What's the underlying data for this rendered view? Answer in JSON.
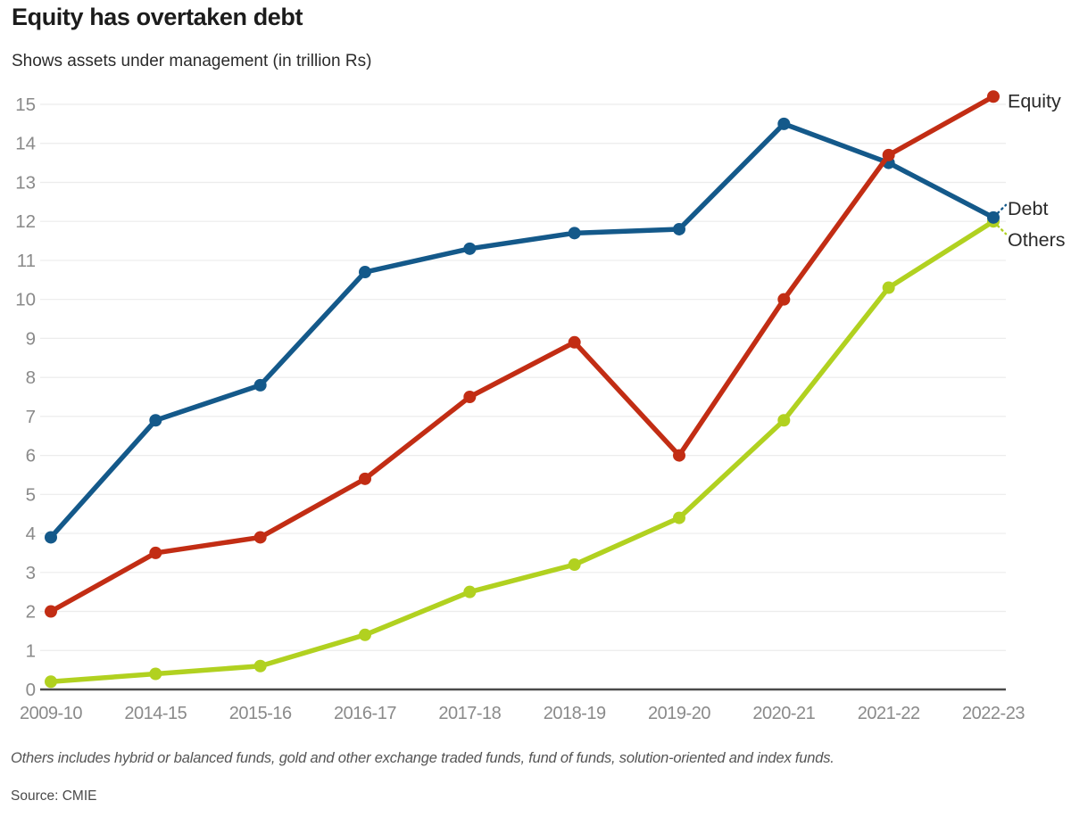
{
  "header": {
    "title": "Equity has overtaken debt",
    "subtitle": "Shows assets under management (in trillion Rs)"
  },
  "chart_data": {
    "type": "line",
    "title": "Equity has overtaken debt",
    "subtitle": "Shows assets under management (in trillion Rs)",
    "xlabel": "",
    "ylabel": "in trillion Rs",
    "categories": [
      "2009-10",
      "2014-15",
      "2015-16",
      "2016-17",
      "2017-18",
      "2018-19",
      "2019-20",
      "2020-21",
      "2021-22",
      "2022-23"
    ],
    "series": [
      {
        "name": "Equity",
        "color": "#c22d14",
        "z": 2,
        "label_dy": 5,
        "leader": false,
        "values": [
          2.0,
          3.5,
          3.9,
          5.4,
          7.5,
          8.9,
          6.0,
          10.0,
          13.7,
          15.2
        ]
      },
      {
        "name": "Debt",
        "color": "#14598a",
        "z": 1,
        "label_dy": -10,
        "leader": true,
        "leader_dir": -1,
        "values": [
          3.9,
          6.9,
          7.8,
          10.7,
          11.3,
          11.7,
          11.8,
          14.5,
          13.5,
          12.1
        ]
      },
      {
        "name": "Others",
        "color": "#b1d120",
        "z": 0,
        "label_dy": 21,
        "leader": true,
        "leader_dir": 1,
        "values": [
          0.2,
          0.4,
          0.6,
          1.4,
          2.5,
          3.2,
          4.4,
          6.9,
          10.3,
          12.0
        ]
      }
    ],
    "ylim": [
      0,
      15
    ],
    "yticks": [
      0,
      1,
      2,
      3,
      4,
      5,
      6,
      7,
      8,
      9,
      10,
      11,
      12,
      13,
      14,
      15
    ],
    "grid": "horizontal",
    "legend_position": "right-end-labels",
    "colors": {
      "gridline": "#ececec",
      "axis_line": "#4b4b4b",
      "tick_label": "#8a8a8a",
      "series_label": "#2a2a2a"
    }
  },
  "footnote": "Others includes hybrid or balanced funds, gold and other exchange traded funds, fund of funds, solution-oriented and index funds.",
  "source": "Source: CMIE"
}
